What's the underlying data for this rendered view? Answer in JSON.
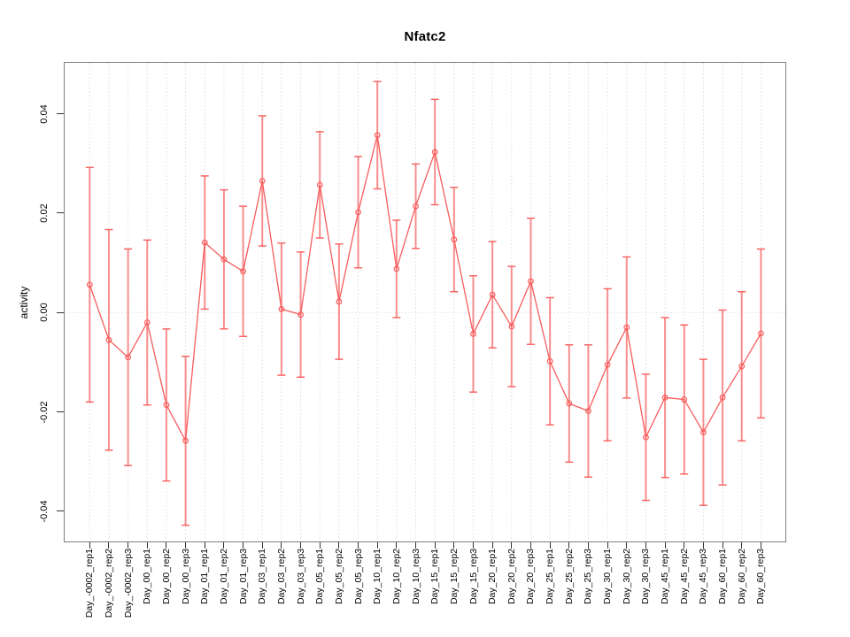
{
  "figure": {
    "title": "Nfatc2",
    "background": "#ffffff"
  },
  "chart_data": {
    "type": "line",
    "subtype": "points-with-error-bars",
    "title": "Nfatc2",
    "xlabel": "",
    "ylabel": "activity",
    "ylim": [
      -0.0465,
      0.0505
    ],
    "yticks": [
      0.04,
      0.02,
      0.0,
      -0.02,
      -0.04
    ],
    "ytick_labels": [
      "0.04",
      "0.02",
      "0.00",
      "-0.02",
      "-0.04"
    ],
    "grid": {
      "vertical_dotted_per_category": true,
      "horizontal_dotted_at_zero": true
    },
    "legend": "none",
    "marker": "open-circle",
    "categories": [
      "Day_-0002_rep1",
      "Day_-0002_rep2",
      "Day_-0002_rep3",
      "Day_00_rep1",
      "Day_00_rep2",
      "Day_00_rep3",
      "Day_01_rep1",
      "Day_01_rep2",
      "Day_01_rep3",
      "Day_03_rep1",
      "Day_03_rep2",
      "Day_03_rep3",
      "Day_05_rep1",
      "Day_05_rep2",
      "Day_05_rep3",
      "Day_10_rep1",
      "Day_10_rep2",
      "Day_10_rep3",
      "Day_15_rep1",
      "Day_15_rep2",
      "Day_15_rep3",
      "Day_20_rep1",
      "Day_20_rep2",
      "Day_20_rep3",
      "Day_25_rep1",
      "Day_25_rep2",
      "Day_25_rep3",
      "Day_30_rep1",
      "Day_30_rep2",
      "Day_30_rep3",
      "Day_45_rep1",
      "Day_45_rep2",
      "Day_45_rep3",
      "Day_60_rep1",
      "Day_60_rep2",
      "Day_60_rep3"
    ],
    "series": [
      {
        "name": "activity",
        "values": [
          0.0056,
          -0.0055,
          -0.009,
          -0.002,
          -0.0186,
          -0.0258,
          0.0141,
          0.0107,
          0.0083,
          0.0265,
          0.0007,
          -0.0004,
          0.0257,
          0.0022,
          0.0202,
          0.0357,
          0.0088,
          0.0214,
          0.0323,
          0.0147,
          -0.0043,
          0.0036,
          -0.0028,
          0.0063,
          -0.0098,
          -0.0183,
          -0.0198,
          -0.0105,
          -0.003,
          -0.0251,
          -0.0171,
          -0.0175,
          -0.0241,
          -0.0171,
          -0.0108,
          -0.0042
        ],
        "errors": [
          0.0236,
          0.0222,
          0.0218,
          0.0166,
          0.0153,
          0.017,
          0.0134,
          0.014,
          0.0131,
          0.0131,
          0.0133,
          0.0126,
          0.0107,
          0.0116,
          0.0112,
          0.0108,
          0.0098,
          0.0085,
          0.0106,
          0.0105,
          0.0117,
          0.0107,
          0.0121,
          0.0127,
          0.0128,
          0.0118,
          0.0133,
          0.0153,
          0.0142,
          0.0127,
          0.0161,
          0.015,
          0.0147,
          0.0176,
          0.015,
          0.017
        ]
      }
    ]
  },
  "colors": {
    "series": "#f85c5c",
    "error_bar": "rgba(249,100,100,0.72)",
    "grid": "#cccccc",
    "box_border": "#7f7f7f",
    "tick": "#333333",
    "text": "#000000"
  }
}
